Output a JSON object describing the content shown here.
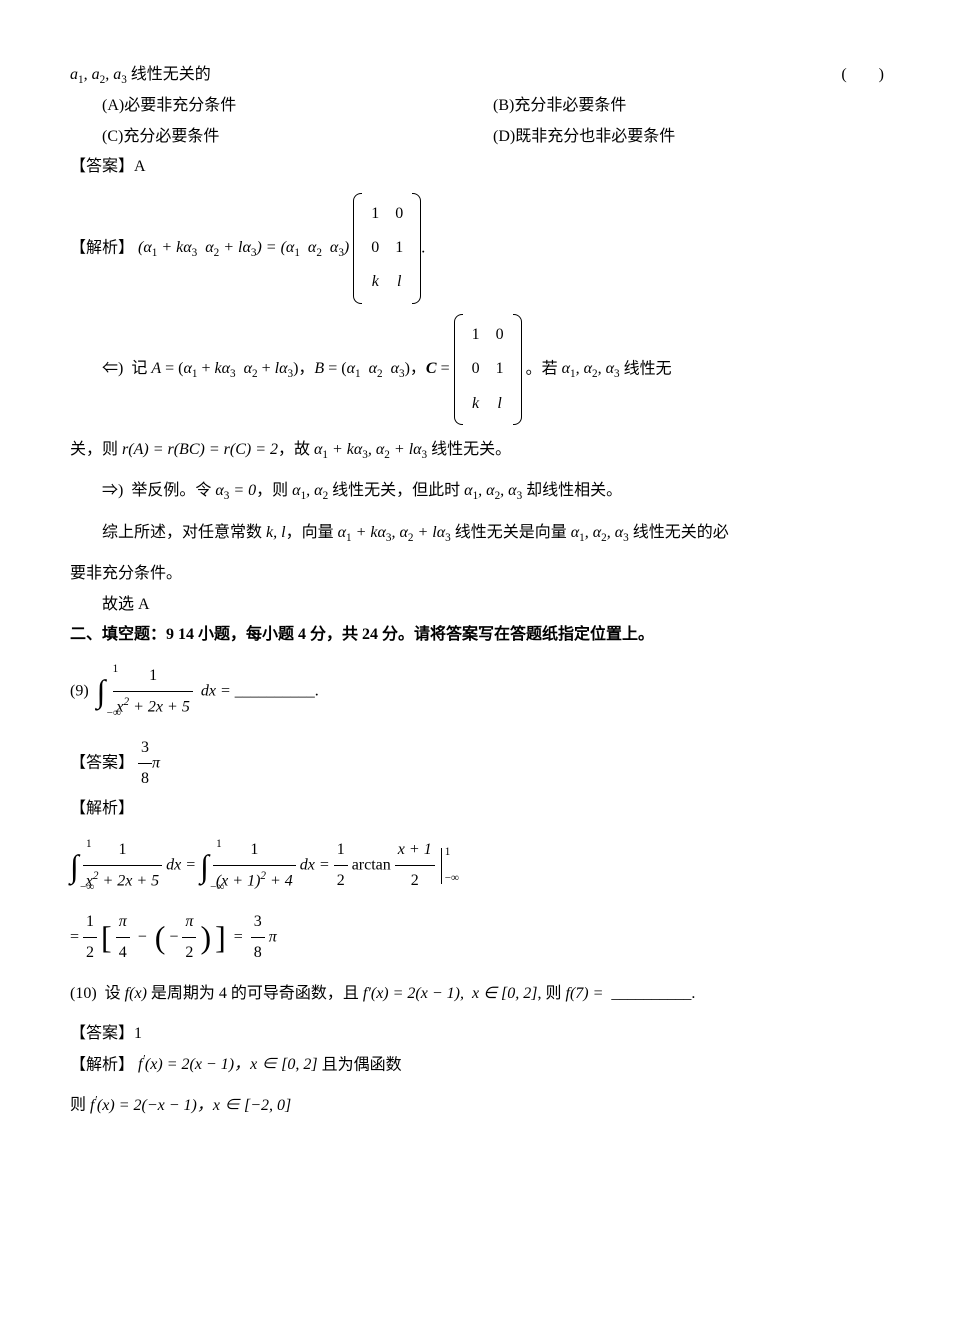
{
  "stem_line": "a₁, a₂, a₃ 线性无关的",
  "paren": "(　　)",
  "options": {
    "A": "(A)必要非充分条件",
    "B": "(B)充分非必要条件",
    "C": "(C)充分必要条件",
    "D": "(D)既非充分也非必要条件"
  },
  "answer_label": "【答案】",
  "answer_A": "A",
  "analysis_label": "【解析】",
  "matrix3x2": {
    "r1": [
      "1",
      "0"
    ],
    "r2": [
      "0",
      "1"
    ],
    "r3": [
      "k",
      "l"
    ]
  },
  "eq1_left": "(α₁ + kα₃　α₂ + lα₃) = (α₁　α₂　α₃)",
  "eq1_tail": ".",
  "impl_left_prefix": "⇐)　记 A = (α₁ + kα₃　α₂ + lα₃)，B = (α₁　α₂　α₃)，C =",
  "impl_left_suffix": "。若 α₁, α₂, α₃ 线性无",
  "rank_line": "关，则 r(A) = r(BC) = r(C) = 2，故 α₁ + kα₃, α₂ + lα₃ 线性无关。",
  "impl_right": "⇒)　举反例。令 α₃ = 0，则 α₁, α₂ 线性无关，但此时 α₁, α₂, α₃ 却线性相关。",
  "summary1": "综上所述，对任意常数 k, l，向量 α₁ + kα₃, α₂ + lα₃ 线性无关是向量 α₁, α₂, α₃ 线性无关的必",
  "summary2": "要非充分条件。",
  "hence": "故选 A",
  "section2": "二、填空题：9󠄀 14 小题，每小题 4 分，共 24 分。请将答案写在答题纸指定位置上。",
  "q9_label": "(9)",
  "q9_integral": {
    "lower": "−∞",
    "upper": "1",
    "integrand_num": "1",
    "integrand_den": "x² + 2x + 5",
    "dx": "dx ="
  },
  "blank": "__________.",
  "answer9_frac": {
    "n": "3",
    "d": "8"
  },
  "pi": "π",
  "q9_work1": {
    "lhs_lower": "−∞",
    "lhs_upper": "1",
    "lhs_num": "1",
    "lhs_den": "x² + 2x + 5",
    "lhs_dx": "dx =",
    "mid_lower": "−∞",
    "mid_upper": "1",
    "mid_num": "1",
    "mid_den": "(x + 1)² + 4",
    "mid_dx": "dx =",
    "half_n": "1",
    "half_d": "2",
    "arctan": "arctan",
    "arg_n": "x + 1",
    "arg_d": "2",
    "eval_upper": "1",
    "eval_lower": "−∞"
  },
  "q9_work2": {
    "pref": "=",
    "half_n": "1",
    "half_d": "2",
    "t1_n": "π",
    "t1_d": "4",
    "minus": "−",
    "lp": "(",
    "neg": "−",
    "t2_n": "π",
    "t2_d": "2",
    "rp": ")",
    "eq": "=",
    "res_n": "3",
    "res_d": "8"
  },
  "q10_label": "(10)",
  "q10_text1": "设 f(x) 是周期为 4 的可导奇函数，且 f′(x) = 2(x − 1),　x ∈ [0, 2], 则 f(7) =",
  "answer10": "1",
  "q10_work1": "f ′(x) = 2(x − 1)，x ∈ [0, 2] 且为偶函数",
  "q10_work2": "则 f ′(x) = 2(−x − 1)，x ∈ [−2, 0]",
  "colors": {
    "text": "#000000",
    "bg": "#ffffff"
  }
}
